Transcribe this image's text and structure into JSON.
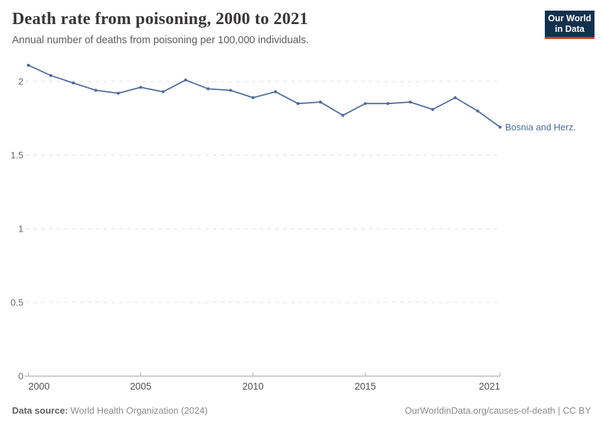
{
  "header": {
    "title": "Death rate from poisoning, 2000 to 2021",
    "subtitle": "Annual number of deaths from poisoning per 100,000 individuals."
  },
  "logo": {
    "line1": "Our World",
    "line2": "in Data"
  },
  "chart_data": {
    "type": "line",
    "title": "Death rate from poisoning, 2000 to 2021",
    "xlabel": "",
    "ylabel": "Annual deaths from poisoning per 100,000 individuals",
    "x": [
      2000,
      2001,
      2002,
      2003,
      2004,
      2005,
      2006,
      2007,
      2008,
      2009,
      2010,
      2011,
      2012,
      2013,
      2014,
      2015,
      2016,
      2017,
      2018,
      2019,
      2020,
      2021
    ],
    "series": [
      {
        "name": "Bosnia and Herz.",
        "color": "#4c6a9c",
        "values": [
          2.11,
          2.04,
          1.99,
          1.94,
          1.92,
          1.96,
          1.93,
          2.01,
          1.95,
          1.94,
          1.89,
          1.93,
          1.85,
          1.86,
          1.77,
          1.85,
          1.85,
          1.86,
          1.81,
          1.89,
          1.8,
          1.69
        ]
      }
    ],
    "ylim": [
      0,
      2.17
    ],
    "yticks": [
      0,
      0.5,
      1,
      1.5,
      2
    ],
    "ytick_labels": [
      "0",
      "0.5",
      "1",
      "1.5",
      "2"
    ],
    "xticks": [
      2000,
      2005,
      2010,
      2015,
      2021
    ],
    "xtick_labels": [
      "2000",
      "2005",
      "2010",
      "2015",
      "2021"
    ],
    "grid": "horizontal-dashed",
    "legend_position": "end-of-line-label",
    "end_label": "Bosnia and Herz."
  },
  "footer": {
    "source_label": "Data source:",
    "source_value": " World Health Organization (2024)",
    "credit": "OurWorldinData.org/causes-of-death | CC BY"
  },
  "colors": {
    "line": "#4c6a9c",
    "logo_background": "#14304f",
    "logo_stripe": "#d7382e",
    "gridline": "#dcdcdc",
    "axis": "#999999",
    "title_text": "#383636",
    "subtitle_text": "#5b5b5b",
    "footer_text": "#8a8a8a"
  }
}
